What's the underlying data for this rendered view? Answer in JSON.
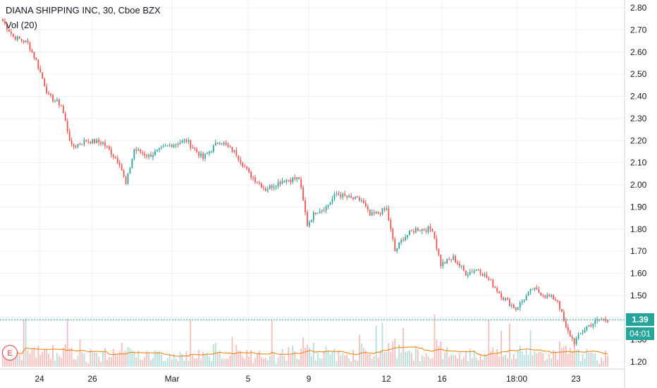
{
  "header": {
    "title": "DIANA SHIPPING INC, 30, Cboe BZX",
    "vol_label": "Vol (20)",
    "earnings_badge": "E"
  },
  "price_tag": {
    "value": "1.39",
    "countdown": "04:01"
  },
  "colors": {
    "up": "#26a69a",
    "down": "#ef5350",
    "up_vol": "#b2dfdb",
    "down_vol": "#f7bcbc",
    "vol_ma": "#f57c00",
    "grid": "#eef0f3",
    "price_line": "#26a69a"
  },
  "chart_data": {
    "type": "candlestick",
    "title": "DIANA SHIPPING INC, 30, Cboe BZX",
    "y_axis": {
      "ticks": [
        "2.80",
        "2.70",
        "2.60",
        "2.50",
        "2.40",
        "2.30",
        "2.20",
        "2.10",
        "2.00",
        "1.90",
        "1.80",
        "1.70",
        "1.60",
        "1.50",
        "1.40",
        "1.30",
        "1.20"
      ],
      "range": [
        1.195,
        2.815
      ]
    },
    "x_axis": {
      "ticks": [
        "24",
        "26",
        "Mar",
        "5",
        "9",
        "12",
        "16",
        "18:00",
        "23"
      ]
    },
    "current_price": 1.39,
    "price_keypoints": [
      [
        0,
        2.74
      ],
      [
        5,
        2.67
      ],
      [
        12,
        2.64
      ],
      [
        16,
        2.56
      ],
      [
        22,
        2.4
      ],
      [
        28,
        2.36
      ],
      [
        33,
        2.17
      ],
      [
        40,
        2.2
      ],
      [
        48,
        2.19
      ],
      [
        56,
        2.1
      ],
      [
        59,
        2.0
      ],
      [
        63,
        2.16
      ],
      [
        70,
        2.13
      ],
      [
        80,
        2.18
      ],
      [
        88,
        2.2
      ],
      [
        96,
        2.12
      ],
      [
        104,
        2.2
      ],
      [
        112,
        2.14
      ],
      [
        118,
        2.05
      ],
      [
        126,
        1.98
      ],
      [
        134,
        2.02
      ],
      [
        142,
        2.03
      ],
      [
        146,
        1.82
      ],
      [
        150,
        1.88
      ],
      [
        155,
        1.9
      ],
      [
        160,
        1.96
      ],
      [
        166,
        1.94
      ],
      [
        172,
        1.93
      ],
      [
        176,
        1.86
      ],
      [
        184,
        1.89
      ],
      [
        188,
        1.7
      ],
      [
        192,
        1.76
      ],
      [
        198,
        1.8
      ],
      [
        206,
        1.8
      ],
      [
        210,
        1.64
      ],
      [
        216,
        1.67
      ],
      [
        222,
        1.6
      ],
      [
        228,
        1.62
      ],
      [
        234,
        1.56
      ],
      [
        240,
        1.49
      ],
      [
        246,
        1.44
      ],
      [
        254,
        1.53
      ],
      [
        260,
        1.5
      ],
      [
        266,
        1.48
      ],
      [
        270,
        1.35
      ],
      [
        274,
        1.29
      ],
      [
        280,
        1.36
      ],
      [
        286,
        1.39
      ],
      [
        290,
        1.39
      ]
    ]
  }
}
